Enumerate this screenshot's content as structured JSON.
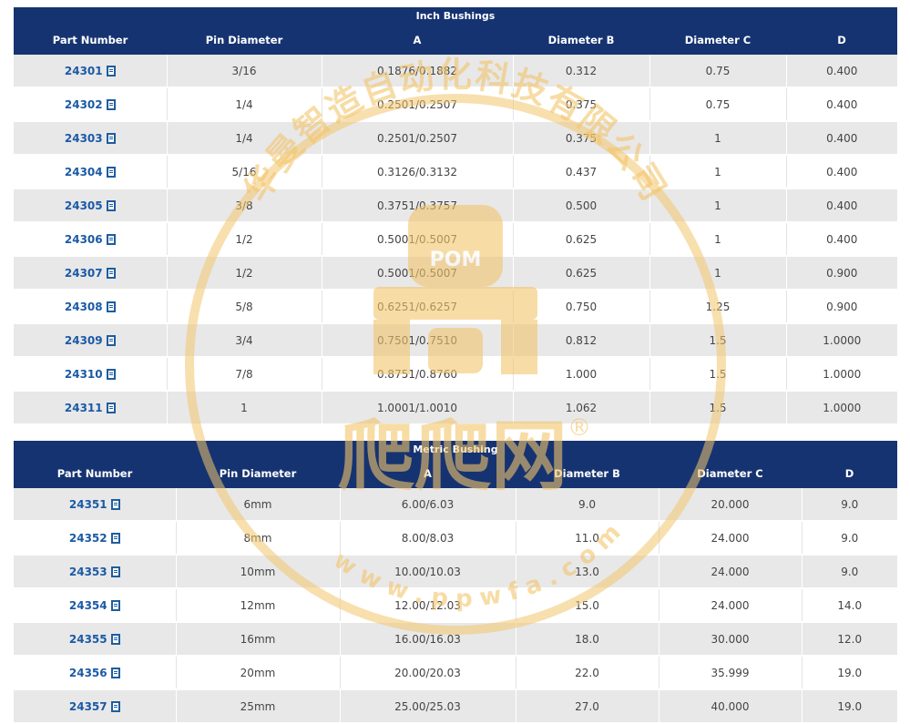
{
  "inch": {
    "title": "Inch Bushings",
    "headers": [
      "Part Number",
      "Pin Diameter",
      "A",
      "Diameter B",
      "Diameter C",
      "D"
    ],
    "rows": [
      [
        "24301",
        "3/16",
        "0.1876/0.1882",
        "0.312",
        "0.75",
        "0.400"
      ],
      [
        "24302",
        "1/4",
        "0.2501/0.2507",
        "0.375",
        "0.75",
        "0.400"
      ],
      [
        "24303",
        "1/4",
        "0.2501/0.2507",
        "0.375",
        "1",
        "0.400"
      ],
      [
        "24304",
        "5/16",
        "0.3126/0.3132",
        "0.437",
        "1",
        "0.400"
      ],
      [
        "24305",
        "3/8",
        "0.3751/0.3757",
        "0.500",
        "1",
        "0.400"
      ],
      [
        "24306",
        "1/2",
        "0.5001/0.5007",
        "0.625",
        "1",
        "0.400"
      ],
      [
        "24307",
        "1/2",
        "0.5001/0.5007",
        "0.625",
        "1",
        "0.900"
      ],
      [
        "24308",
        "5/8",
        "0.6251/0.6257",
        "0.750",
        "1.25",
        "0.900"
      ],
      [
        "24309",
        "3/4",
        "0.7501/0.7510",
        "0.812",
        "1.5",
        "1.0000"
      ],
      [
        "24310",
        "7/8",
        "0.8751/0.8760",
        "1.000",
        "1.5",
        "1.0000"
      ],
      [
        "24311",
        "1",
        "1.0001/1.0010",
        "1.062",
        "1.5",
        "1.0000"
      ]
    ]
  },
  "metric": {
    "title": "Metric Bushing",
    "headers": [
      "Part Number",
      "Pin Diameter",
      "A",
      "Diameter B",
      "Diameter C",
      "D"
    ],
    "rows": [
      [
        "24351",
        "6mm",
        "6.00/6.03",
        "9.0",
        "20.000",
        "9.0"
      ],
      [
        "24352",
        "8mm",
        "8.00/8.03",
        "11.0",
        "24.000",
        "9.0"
      ],
      [
        "24353",
        "10mm",
        "10.00/10.03",
        "13.0",
        "24.000",
        "9.0"
      ],
      [
        "24354",
        "12mm",
        "12.00/12.03",
        "15.0",
        "24.000",
        "14.0"
      ],
      [
        "24355",
        "16mm",
        "16.00/16.03",
        "18.0",
        "30.000",
        "12.0"
      ],
      [
        "24356",
        "20mm",
        "20.00/20.03",
        "22.0",
        "35.999",
        "19.0"
      ],
      [
        "24357",
        "25mm",
        "25.00/25.03",
        "27.0",
        "40.000",
        "19.0"
      ]
    ]
  },
  "watermark": {
    "company": "华曼智造自动化科技有限公司",
    "logo_text": "POM",
    "brand": "爬爬网",
    "registered": "®",
    "url": "w w w . p p w f a . c o m"
  },
  "colors": {
    "header_bg": "#163371",
    "link": "#1b5aa6",
    "stripe": "#e8e8e9",
    "watermark": "#f2c56b"
  },
  "icons": {
    "pdf": "pdf-document-icon"
  }
}
